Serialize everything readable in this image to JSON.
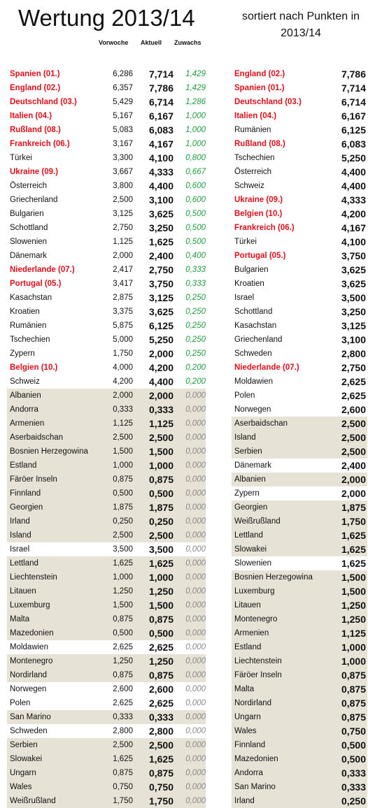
{
  "title": "Wertung 2013/14",
  "subtitle": "sortiert nach Punkten in 2013/14",
  "headers": {
    "prev": "Vorwoche",
    "current": "Aktuell",
    "gain": "Zuwachs"
  },
  "colors": {
    "highlight": "#e0101a",
    "gain_green": "#1e9e3e",
    "gain_grey": "#888888",
    "shade": "#e6e2d6"
  },
  "left_table": [
    {
      "name": "Spanien (01.)",
      "prev": "6,286",
      "current": "7,714",
      "gain": "1,429",
      "hl": true,
      "shade": false
    },
    {
      "name": "England (02.)",
      "prev": "6,357",
      "current": "7,786",
      "gain": "1,429",
      "hl": true,
      "shade": false
    },
    {
      "name": "Deutschland (03.)",
      "prev": "5,429",
      "current": "6,714",
      "gain": "1,286",
      "hl": true,
      "shade": false
    },
    {
      "name": "Italien (04.)",
      "prev": "5,167",
      "current": "6,167",
      "gain": "1,000",
      "hl": true,
      "shade": false
    },
    {
      "name": "Rußland (08.)",
      "prev": "5,083",
      "current": "6,083",
      "gain": "1,000",
      "hl": true,
      "shade": false
    },
    {
      "name": "Frankreich (06.)",
      "prev": "3,167",
      "current": "4,167",
      "gain": "1,000",
      "hl": true,
      "shade": false
    },
    {
      "name": "Türkei",
      "prev": "3,300",
      "current": "4,100",
      "gain": "0,800",
      "hl": false,
      "shade": false
    },
    {
      "name": "Ukraine (09.)",
      "prev": "3,667",
      "current": "4,333",
      "gain": "0,667",
      "hl": true,
      "shade": false
    },
    {
      "name": "Österreich",
      "prev": "3,800",
      "current": "4,400",
      "gain": "0,600",
      "hl": false,
      "shade": false
    },
    {
      "name": "Griechenland",
      "prev": "2,500",
      "current": "3,100",
      "gain": "0,600",
      "hl": false,
      "shade": false
    },
    {
      "name": "Bulgarien",
      "prev": "3,125",
      "current": "3,625",
      "gain": "0,500",
      "hl": false,
      "shade": false
    },
    {
      "name": "Schottland",
      "prev": "2,750",
      "current": "3,250",
      "gain": "0,500",
      "hl": false,
      "shade": false
    },
    {
      "name": "Slowenien",
      "prev": "1,125",
      "current": "1,625",
      "gain": "0,500",
      "hl": false,
      "shade": false
    },
    {
      "name": "Dänemark",
      "prev": "2,000",
      "current": "2,400",
      "gain": "0,400",
      "hl": false,
      "shade": false
    },
    {
      "name": "Niederlande (07.)",
      "prev": "2,417",
      "current": "2,750",
      "gain": "0,333",
      "hl": true,
      "shade": false
    },
    {
      "name": "Portugal (05.)",
      "prev": "3,417",
      "current": "3,750",
      "gain": "0,333",
      "hl": true,
      "shade": false
    },
    {
      "name": "Kasachstan",
      "prev": "2,875",
      "current": "3,125",
      "gain": "0,250",
      "hl": false,
      "shade": false
    },
    {
      "name": "Kroatien",
      "prev": "3,375",
      "current": "3,625",
      "gain": "0,250",
      "hl": false,
      "shade": false
    },
    {
      "name": "Rumänien",
      "prev": "5,875",
      "current": "6,125",
      "gain": "0,250",
      "hl": false,
      "shade": false
    },
    {
      "name": "Tschechien",
      "prev": "5,000",
      "current": "5,250",
      "gain": "0,250",
      "hl": false,
      "shade": false
    },
    {
      "name": "Zypern",
      "prev": "1,750",
      "current": "2,000",
      "gain": "0,250",
      "hl": false,
      "shade": false
    },
    {
      "name": "Belgien (10.)",
      "prev": "4,000",
      "current": "4,200",
      "gain": "0,200",
      "hl": true,
      "shade": false
    },
    {
      "name": "Schweiz",
      "prev": "4,200",
      "current": "4,400",
      "gain": "0,200",
      "hl": false,
      "shade": false
    },
    {
      "name": "Albanien",
      "prev": "2,000",
      "current": "2,000",
      "gain": "0,000",
      "hl": false,
      "shade": true
    },
    {
      "name": "Andorra",
      "prev": "0,333",
      "current": "0,333",
      "gain": "0,000",
      "hl": false,
      "shade": true
    },
    {
      "name": "Armenien",
      "prev": "1,125",
      "current": "1,125",
      "gain": "0,000",
      "hl": false,
      "shade": true
    },
    {
      "name": "Aserbaidschan",
      "prev": "2,500",
      "current": "2,500",
      "gain": "0,000",
      "hl": false,
      "shade": true
    },
    {
      "name": "Bosnien Herzegowina",
      "prev": "1,500",
      "current": "1,500",
      "gain": "0,000",
      "hl": false,
      "shade": true
    },
    {
      "name": "Estland",
      "prev": "1,000",
      "current": "1,000",
      "gain": "0,000",
      "hl": false,
      "shade": true
    },
    {
      "name": "Färöer Inseln",
      "prev": "0,875",
      "current": "0,875",
      "gain": "0,000",
      "hl": false,
      "shade": true
    },
    {
      "name": "Finnland",
      "prev": "0,500",
      "current": "0,500",
      "gain": "0,000",
      "hl": false,
      "shade": true
    },
    {
      "name": "Georgien",
      "prev": "1,875",
      "current": "1,875",
      "gain": "0,000",
      "hl": false,
      "shade": true
    },
    {
      "name": "Irland",
      "prev": "0,250",
      "current": "0,250",
      "gain": "0,000",
      "hl": false,
      "shade": true
    },
    {
      "name": "Island",
      "prev": "2,500",
      "current": "2,500",
      "gain": "0,000",
      "hl": false,
      "shade": true
    },
    {
      "name": "Israel",
      "prev": "3,500",
      "current": "3,500",
      "gain": "0,000",
      "hl": false,
      "shade": false
    },
    {
      "name": "Lettland",
      "prev": "1,625",
      "current": "1,625",
      "gain": "0,000",
      "hl": false,
      "shade": true
    },
    {
      "name": "Liechtenstein",
      "prev": "1,000",
      "current": "1,000",
      "gain": "0,000",
      "hl": false,
      "shade": true
    },
    {
      "name": "Litauen",
      "prev": "1,250",
      "current": "1,250",
      "gain": "0,000",
      "hl": false,
      "shade": true
    },
    {
      "name": "Luxemburg",
      "prev": "1,500",
      "current": "1,500",
      "gain": "0,000",
      "hl": false,
      "shade": true
    },
    {
      "name": "Malta",
      "prev": "0,875",
      "current": "0,875",
      "gain": "0,000",
      "hl": false,
      "shade": true
    },
    {
      "name": "Mazedonien",
      "prev": "0,500",
      "current": "0,500",
      "gain": "0,000",
      "hl": false,
      "shade": true
    },
    {
      "name": "Moldawien",
      "prev": "2,625",
      "current": "2,625",
      "gain": "0,000",
      "hl": false,
      "shade": false
    },
    {
      "name": "Montenegro",
      "prev": "1,250",
      "current": "1,250",
      "gain": "0,000",
      "hl": false,
      "shade": true
    },
    {
      "name": "Nordirland",
      "prev": "0,875",
      "current": "0,875",
      "gain": "0,000",
      "hl": false,
      "shade": true
    },
    {
      "name": "Norwegen",
      "prev": "2,600",
      "current": "2,600",
      "gain": "0,000",
      "hl": false,
      "shade": false
    },
    {
      "name": "Polen",
      "prev": "2,625",
      "current": "2,625",
      "gain": "0,000",
      "hl": false,
      "shade": false
    },
    {
      "name": "San Marino",
      "prev": "0,333",
      "current": "0,333",
      "gain": "0,000",
      "hl": false,
      "shade": true
    },
    {
      "name": "Schweden",
      "prev": "2,800",
      "current": "2,800",
      "gain": "0,000",
      "hl": false,
      "shade": false
    },
    {
      "name": "Serbien",
      "prev": "2,500",
      "current": "2,500",
      "gain": "0,000",
      "hl": false,
      "shade": true
    },
    {
      "name": "Slowakei",
      "prev": "1,625",
      "current": "1,625",
      "gain": "0,000",
      "hl": false,
      "shade": true
    },
    {
      "name": "Ungarn",
      "prev": "0,875",
      "current": "0,875",
      "gain": "0,000",
      "hl": false,
      "shade": true
    },
    {
      "name": "Wales",
      "prev": "0,750",
      "current": "0,750",
      "gain": "0,000",
      "hl": false,
      "shade": true
    },
    {
      "name": "Weißrußland",
      "prev": "1,750",
      "current": "1,750",
      "gain": "0,000",
      "hl": false,
      "shade": true
    }
  ],
  "right_table": [
    {
      "name": "England (02.)",
      "value": "7,786",
      "hl": true,
      "shade": false
    },
    {
      "name": "Spanien (01.)",
      "value": "7,714",
      "hl": true,
      "shade": false
    },
    {
      "name": "Deutschland (03.)",
      "value": "6,714",
      "hl": true,
      "shade": false
    },
    {
      "name": "Italien (04.)",
      "value": "6,167",
      "hl": true,
      "shade": false
    },
    {
      "name": "Rumänien",
      "value": "6,125",
      "hl": false,
      "shade": false
    },
    {
      "name": "Rußland (08.)",
      "value": "6,083",
      "hl": true,
      "shade": false
    },
    {
      "name": "Tschechien",
      "value": "5,250",
      "hl": false,
      "shade": false
    },
    {
      "name": "Österreich",
      "value": "4,400",
      "hl": false,
      "shade": false
    },
    {
      "name": "Schweiz",
      "value": "4,400",
      "hl": false,
      "shade": false
    },
    {
      "name": "Ukraine (09.)",
      "value": "4,333",
      "hl": true,
      "shade": false
    },
    {
      "name": "Belgien (10.)",
      "value": "4,200",
      "hl": true,
      "shade": false
    },
    {
      "name": "Frankreich (06.)",
      "value": "4,167",
      "hl": true,
      "shade": false
    },
    {
      "name": "Türkei",
      "value": "4,100",
      "hl": false,
      "shade": false
    },
    {
      "name": "Portugal (05.)",
      "value": "3,750",
      "hl": true,
      "shade": false
    },
    {
      "name": "Bulgarien",
      "value": "3,625",
      "hl": false,
      "shade": false
    },
    {
      "name": "Kroatien",
      "value": "3,625",
      "hl": false,
      "shade": false
    },
    {
      "name": "Israel",
      "value": "3,500",
      "hl": false,
      "shade": false
    },
    {
      "name": "Schottland",
      "value": "3,250",
      "hl": false,
      "shade": false
    },
    {
      "name": "Kasachstan",
      "value": "3,125",
      "hl": false,
      "shade": false
    },
    {
      "name": "Griechenland",
      "value": "3,100",
      "hl": false,
      "shade": false
    },
    {
      "name": "Schweden",
      "value": "2,800",
      "hl": false,
      "shade": false
    },
    {
      "name": "Niederlande (07.)",
      "value": "2,750",
      "hl": true,
      "shade": false
    },
    {
      "name": "Moldawien",
      "value": "2,625",
      "hl": false,
      "shade": false
    },
    {
      "name": "Polen",
      "value": "2,625",
      "hl": false,
      "shade": false
    },
    {
      "name": "Norwegen",
      "value": "2,600",
      "hl": false,
      "shade": false
    },
    {
      "name": "Aserbaidschan",
      "value": "2,500",
      "hl": false,
      "shade": true
    },
    {
      "name": "Island",
      "value": "2,500",
      "hl": false,
      "shade": true
    },
    {
      "name": "Serbien",
      "value": "2,500",
      "hl": false,
      "shade": true
    },
    {
      "name": "Dänemark",
      "value": "2,400",
      "hl": false,
      "shade": false
    },
    {
      "name": "Albanien",
      "value": "2,000",
      "hl": false,
      "shade": true
    },
    {
      "name": "Zypern",
      "value": "2,000",
      "hl": false,
      "shade": false
    },
    {
      "name": "Georgien",
      "value": "1,875",
      "hl": false,
      "shade": true
    },
    {
      "name": "Weißrußland",
      "value": "1,750",
      "hl": false,
      "shade": true
    },
    {
      "name": "Lettland",
      "value": "1,625",
      "hl": false,
      "shade": true
    },
    {
      "name": "Slowakei",
      "value": "1,625",
      "hl": false,
      "shade": true
    },
    {
      "name": "Slowenien",
      "value": "1,625",
      "hl": false,
      "shade": false
    },
    {
      "name": "Bosnien Herzegowina",
      "value": "1,500",
      "hl": false,
      "shade": true
    },
    {
      "name": "Luxemburg",
      "value": "1,500",
      "hl": false,
      "shade": true
    },
    {
      "name": "Litauen",
      "value": "1,250",
      "hl": false,
      "shade": true
    },
    {
      "name": "Montenegro",
      "value": "1,250",
      "hl": false,
      "shade": true
    },
    {
      "name": "Armenien",
      "value": "1,125",
      "hl": false,
      "shade": true
    },
    {
      "name": "Estland",
      "value": "1,000",
      "hl": false,
      "shade": true
    },
    {
      "name": "Liechtenstein",
      "value": "1,000",
      "hl": false,
      "shade": true
    },
    {
      "name": "Färöer Inseln",
      "value": "0,875",
      "hl": false,
      "shade": true
    },
    {
      "name": "Malta",
      "value": "0,875",
      "hl": false,
      "shade": true
    },
    {
      "name": "Nordirland",
      "value": "0,875",
      "hl": false,
      "shade": true
    },
    {
      "name": "Ungarn",
      "value": "0,875",
      "hl": false,
      "shade": true
    },
    {
      "name": "Wales",
      "value": "0,750",
      "hl": false,
      "shade": true
    },
    {
      "name": "Finnland",
      "value": "0,500",
      "hl": false,
      "shade": true
    },
    {
      "name": "Mazedonien",
      "value": "0,500",
      "hl": false,
      "shade": true
    },
    {
      "name": "Andorra",
      "value": "0,333",
      "hl": false,
      "shade": true
    },
    {
      "name": "San Marino",
      "value": "0,333",
      "hl": false,
      "shade": true
    },
    {
      "name": "Irland",
      "value": "0,250",
      "hl": false,
      "shade": true
    }
  ]
}
